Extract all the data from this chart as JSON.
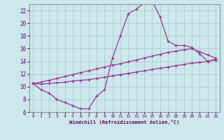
{
  "xlabel": "Windchill (Refroidissement éolien,°C)",
  "bg_color": "#cce8ec",
  "grid_color": "#aacccc",
  "line_color": "#993399",
  "xlim": [
    -0.5,
    23.5
  ],
  "ylim": [
    6,
    23
  ],
  "xticks": [
    0,
    1,
    2,
    3,
    4,
    5,
    6,
    7,
    8,
    9,
    10,
    11,
    12,
    13,
    14,
    15,
    16,
    17,
    18,
    19,
    20,
    21,
    22,
    23
  ],
  "yticks": [
    6,
    8,
    10,
    12,
    14,
    16,
    18,
    20,
    22
  ],
  "curve1_y": [
    10.5,
    9.5,
    9.0,
    8.0,
    7.5,
    7.0,
    6.5,
    6.5,
    8.5,
    9.5,
    14.5,
    18.0,
    21.5,
    22.2,
    23.2,
    23.5,
    21.0,
    17.2,
    16.5,
    16.5,
    16.2,
    15.2,
    14.0,
    14.3
  ],
  "curve2_y": [
    10.5,
    10.4,
    10.5,
    10.6,
    10.7,
    10.9,
    11.0,
    11.1,
    11.3,
    11.5,
    11.7,
    11.9,
    12.1,
    12.3,
    12.5,
    12.7,
    12.9,
    13.1,
    13.3,
    13.5,
    13.7,
    13.8,
    14.0,
    14.2
  ],
  "curve3_y": [
    10.5,
    10.7,
    11.0,
    11.3,
    11.6,
    11.9,
    12.2,
    12.5,
    12.8,
    13.1,
    13.4,
    13.6,
    13.9,
    14.2,
    14.5,
    14.8,
    15.1,
    15.4,
    15.6,
    15.8,
    16.0,
    15.5,
    15.0,
    14.5
  ]
}
